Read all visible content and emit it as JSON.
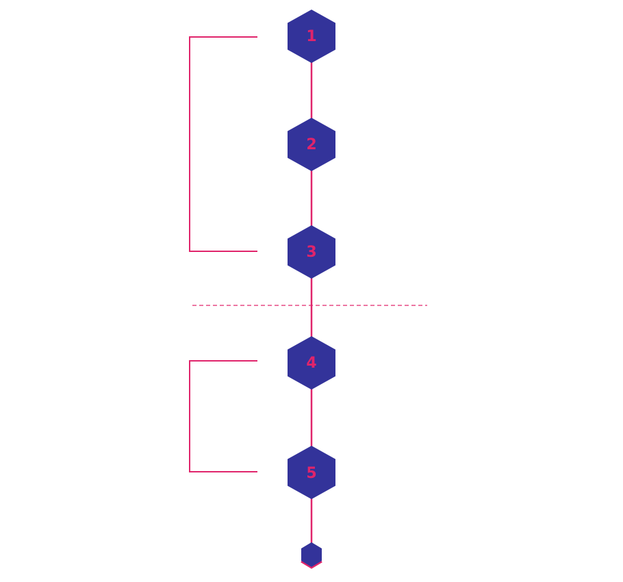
{
  "colors": {
    "hexagon_fill": "#33339A",
    "accent": "#E0246B",
    "background": "#FFFFFF"
  },
  "steps": [
    {
      "label": "1"
    },
    {
      "label": "2"
    },
    {
      "label": "3"
    },
    {
      "label": "4"
    },
    {
      "label": "5"
    }
  ],
  "groups": [
    {
      "from_step": 1,
      "to_step": 3
    },
    {
      "from_step": 4,
      "to_step": 5
    }
  ],
  "separator_after_step": 3,
  "end_marker_icon": "small-hexagon-icon"
}
